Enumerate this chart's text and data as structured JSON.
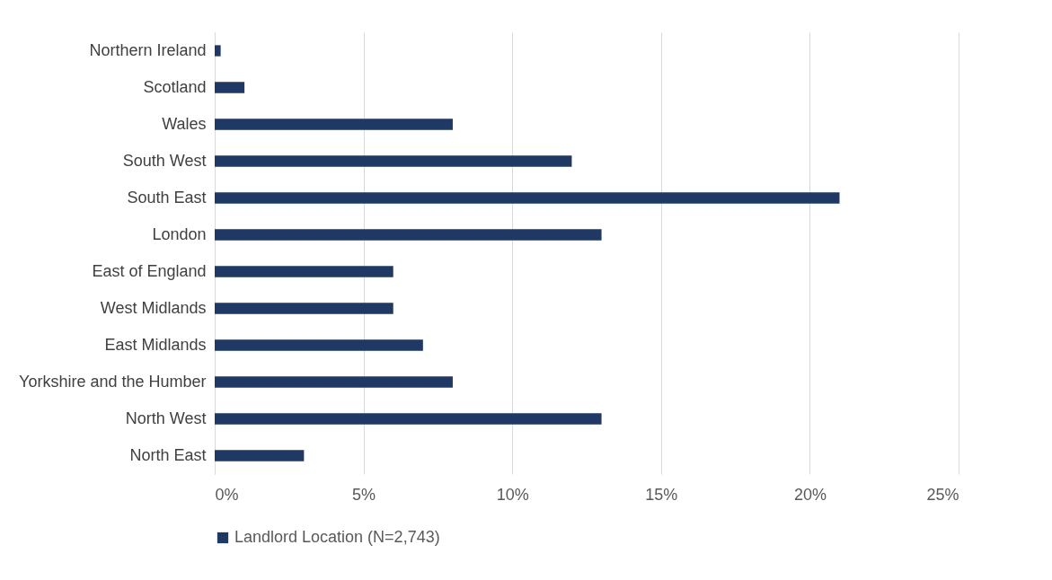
{
  "chart_data": {
    "type": "bar",
    "orientation": "horizontal",
    "categories": [
      "Northern Ireland",
      "Scotland",
      "Wales",
      "South West",
      "South East",
      "London",
      "East of England",
      "West Midlands",
      "East Midlands",
      "Yorkshire and the Humber",
      "North West",
      "North East"
    ],
    "series": [
      {
        "name": "Landlord Location (N=2,743)",
        "color": "#203864",
        "values": [
          0.2,
          1,
          8,
          12,
          21,
          13,
          6,
          6,
          7,
          8,
          13,
          3
        ]
      }
    ],
    "xlim": [
      0,
      25
    ],
    "xticks": [
      {
        "value": 0,
        "label": "0%"
      },
      {
        "value": 5,
        "label": "5%"
      },
      {
        "value": 10,
        "label": "10%"
      },
      {
        "value": 15,
        "label": "15%"
      },
      {
        "value": 20,
        "label": "20%"
      },
      {
        "value": 25,
        "label": "25%"
      }
    ],
    "grid": "x",
    "legend": "bottom"
  }
}
